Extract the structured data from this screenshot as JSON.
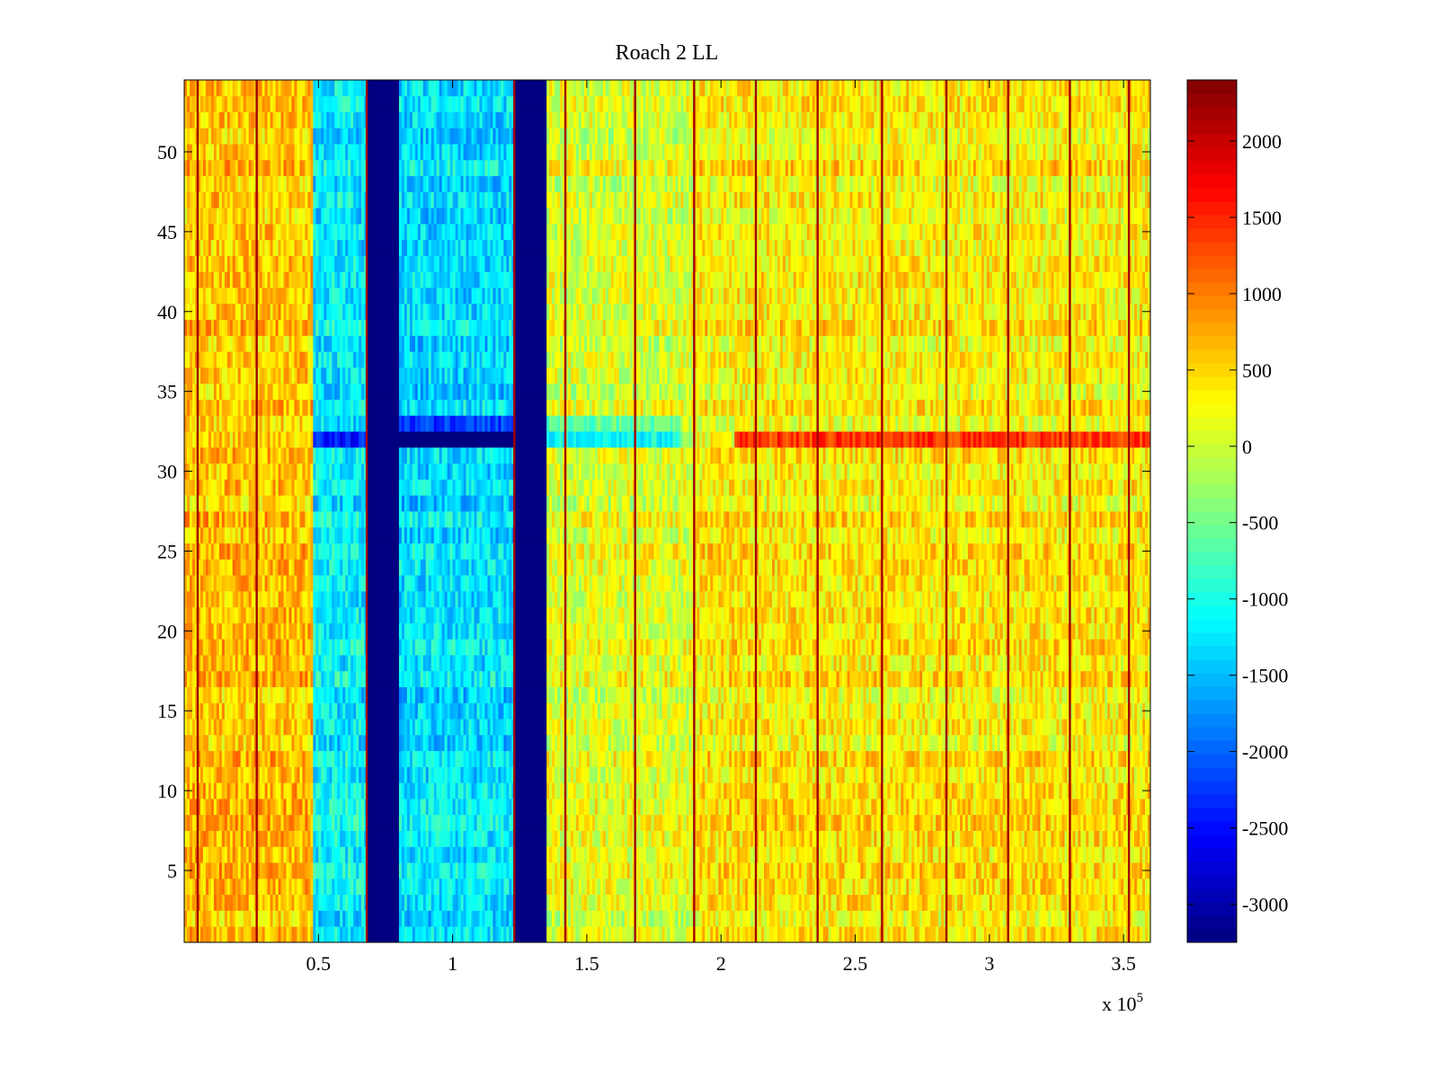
{
  "chart_data": {
    "type": "heatmap",
    "title": "Roach 2 LL",
    "colormap": "jet",
    "grid": false,
    "legend": "colorbar-right",
    "xlabel": "",
    "ylabel": "",
    "xlim": [
      0,
      360000
    ],
    "ylim": [
      0.5,
      54.5
    ],
    "x_exponent_label": "x 10",
    "x_exponent_power": "5",
    "x_ticks": [
      {
        "value": 0.5,
        "label": "0.5"
      },
      {
        "value": 1,
        "label": "1"
      },
      {
        "value": 1.5,
        "label": "1.5"
      },
      {
        "value": 2,
        "label": "2"
      },
      {
        "value": 2.5,
        "label": "2.5"
      },
      {
        "value": 3,
        "label": "3"
      },
      {
        "value": 3.5,
        "label": "3.5"
      }
    ],
    "y_ticks": [
      {
        "value": 5,
        "label": "5"
      },
      {
        "value": 10,
        "label": "10"
      },
      {
        "value": 15,
        "label": "15"
      },
      {
        "value": 20,
        "label": "20"
      },
      {
        "value": 25,
        "label": "25"
      },
      {
        "value": 30,
        "label": "30"
      },
      {
        "value": 35,
        "label": "35"
      },
      {
        "value": 40,
        "label": "40"
      },
      {
        "value": 45,
        "label": "45"
      },
      {
        "value": 50,
        "label": "50"
      }
    ],
    "colorbar": {
      "min": -3250,
      "max": 2400,
      "ticks": [
        {
          "value": 2000,
          "label": "2000"
        },
        {
          "value": 1500,
          "label": "1500"
        },
        {
          "value": 1000,
          "label": "1000"
        },
        {
          "value": 500,
          "label": "500"
        },
        {
          "value": 0,
          "label": "0"
        },
        {
          "value": -500,
          "label": "-500"
        },
        {
          "value": -1000,
          "label": "-1000"
        },
        {
          "value": -1500,
          "label": "-1500"
        },
        {
          "value": -2000,
          "label": "-2000"
        },
        {
          "value": -2500,
          "label": "-2500"
        },
        {
          "value": -3000,
          "label": "-3000"
        }
      ]
    },
    "regions": [
      {
        "x_start": 0,
        "x_end": 48000,
        "mean": 600
      },
      {
        "x_start": 48000,
        "x_end": 68000,
        "mean": -1200
      },
      {
        "x_start": 68000,
        "x_end": 80000,
        "mean": -3250
      },
      {
        "x_start": 80000,
        "x_end": 123000,
        "mean": -1300
      },
      {
        "x_start": 123000,
        "x_end": 135000,
        "mean": -3250
      },
      {
        "x_start": 135000,
        "x_end": 190000,
        "mean": 100
      },
      {
        "x_start": 190000,
        "x_end": 360000,
        "mean": 350
      }
    ],
    "vertical_lines_x": [
      5000,
      27000,
      68000,
      123000,
      142000,
      168000,
      190000,
      213000,
      236000,
      260000,
      284000,
      307000,
      330000,
      352000
    ],
    "vertical_line_value": 2200,
    "row_anomalies": [
      {
        "y": 32,
        "x_start": 80000,
        "x_end": 123000,
        "value": -3250
      },
      {
        "y": 32,
        "x_start": 48000,
        "x_end": 68000,
        "value": -2400
      },
      {
        "y": 33,
        "x_start": 80000,
        "x_end": 123000,
        "value": -2200
      },
      {
        "y": 32,
        "x_start": 135000,
        "x_end": 185000,
        "value": -1100
      },
      {
        "y": 33,
        "x_start": 135000,
        "x_end": 185000,
        "value": -600
      },
      {
        "y": 32,
        "x_start": 205000,
        "x_end": 360000,
        "value": 1400
      }
    ]
  }
}
